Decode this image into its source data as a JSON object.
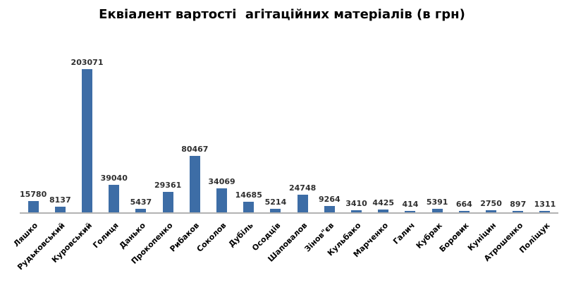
{
  "chart_data": {
    "type": "bar",
    "title": "Еквіалент вартості  агітаційних матеріалів (в грн)",
    "categories": [
      "Ляшко",
      "Рудьковський",
      "Куровський",
      "Голиця",
      "Данько",
      "Прокопенко",
      "Рибаков",
      "Соколов",
      "Дубіль",
      "Осодців",
      "Шаповалов",
      "Зінов\"єв",
      "Кульбако",
      "Марченко",
      "Галич",
      "Кубрак",
      "Боровик",
      "Куніцин",
      "Атрошенко",
      "Поліщук"
    ],
    "values": [
      15780,
      8137,
      203071,
      39040,
      5437,
      29361,
      80467,
      34069,
      14685,
      5214,
      24748,
      9264,
      3410,
      4425,
      414,
      5391,
      664,
      2750,
      897,
      1311
    ],
    "value_labels_shown": true,
    "xlabel": "",
    "ylabel": "",
    "ylim": [
      0,
      210000
    ],
    "grid": false,
    "legend": false,
    "bar_color": "#3d6da6",
    "axis_color": "#b3b3b3",
    "value_label_color": "#2f2f2f",
    "category_label_color": "#000000"
  }
}
